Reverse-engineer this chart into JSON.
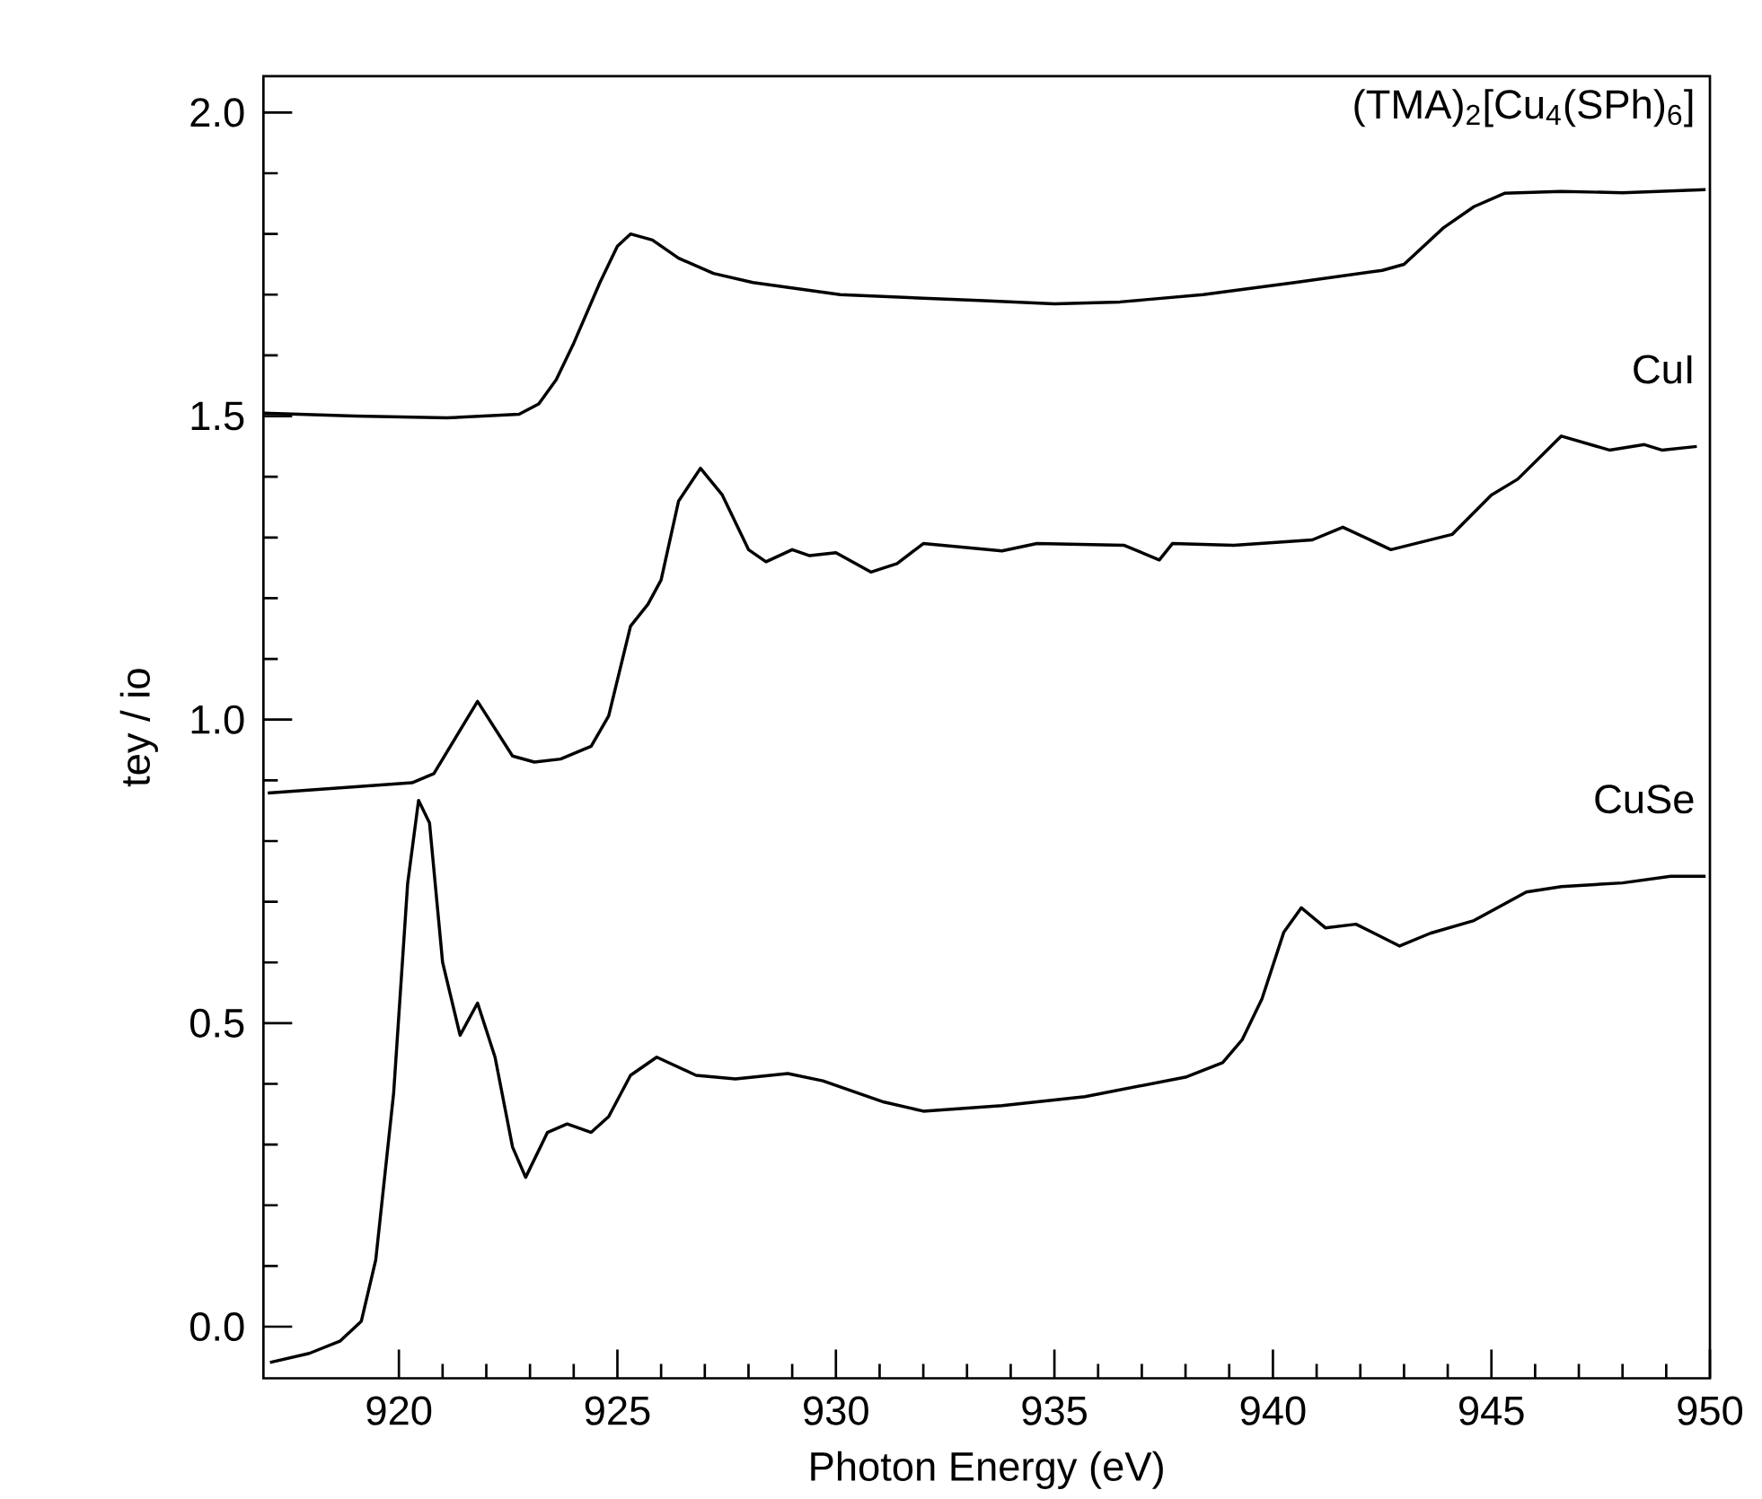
{
  "chart_data": {
    "type": "line",
    "xlabel": "Photon Energy (eV)",
    "ylabel": "tey / io",
    "xlim": [
      916.9,
      950
    ],
    "ylim": [
      -0.085,
      2.06
    ],
    "xticks": [
      920,
      925,
      930,
      935,
      940,
      945,
      950
    ],
    "yticks": [
      {
        "value": 0,
        "label": "0.0"
      },
      0.5,
      {
        "value": 1,
        "label": "1.0"
      },
      1.5,
      {
        "value": 2,
        "label": "2.0"
      }
    ],
    "marker": "none",
    "line_style": "solid",
    "series": [
      {
        "name": "(TMA)$_{2}$[Cu$_{4}$(SPh)$_{6}$]",
        "color": "#000000",
        "x": [
          916.9,
          919,
          921.1,
          922.75,
          923.2,
          923.6,
          924.0,
          924.6,
          925.0,
          925.3,
          925.8,
          926.4,
          927.2,
          928.1,
          930.1,
          933.4,
          935.0,
          936.5,
          938.4,
          940.5,
          942.5,
          943.0,
          943.9,
          944.6,
          945.3,
          946.6,
          948,
          949.9
        ],
        "values": [
          1.505,
          1.5,
          1.497,
          1.503,
          1.52,
          1.56,
          1.62,
          1.72,
          1.78,
          1.8,
          1.79,
          1.76,
          1.735,
          1.72,
          1.7,
          1.69,
          1.685,
          1.688,
          1.7,
          1.72,
          1.74,
          1.75,
          1.81,
          1.845,
          1.867,
          1.87,
          1.868,
          1.873
        ]
      },
      {
        "name": "CuI",
        "color": "#000000",
        "x": [
          917.0,
          920.3,
          920.8,
          921.8,
          922.6,
          923.1,
          923.7,
          924.4,
          924.8,
          925.3,
          925.7,
          926.0,
          926.4,
          926.9,
          927.4,
          928.0,
          928.4,
          929.0,
          929.4,
          930.0,
          930.8,
          931.4,
          932.0,
          933.8,
          934.6,
          936.6,
          937.4,
          937.7,
          939.1,
          940.9,
          941.6,
          942.7,
          944.1,
          945.0,
          945.6,
          946.6,
          947.7,
          948.5,
          948.9,
          949.7
        ],
        "values": [
          0.879,
          0.896,
          0.911,
          1.03,
          0.94,
          0.93,
          0.935,
          0.956,
          1.006,
          1.154,
          1.19,
          1.23,
          1.36,
          1.414,
          1.37,
          1.28,
          1.26,
          1.28,
          1.27,
          1.275,
          1.243,
          1.257,
          1.29,
          1.278,
          1.29,
          1.287,
          1.263,
          1.29,
          1.287,
          1.296,
          1.317,
          1.28,
          1.305,
          1.37,
          1.396,
          1.467,
          1.444,
          1.453,
          1.444,
          1.45
        ]
      },
      {
        "name": "CuSe",
        "color": "#000000",
        "x": [
          917.05,
          917.95,
          918.65,
          919.14,
          919.47,
          919.88,
          920.2,
          920.45,
          920.7,
          921.0,
          921.4,
          921.8,
          922.2,
          922.6,
          922.9,
          923.4,
          923.85,
          924.4,
          924.8,
          925.3,
          925.9,
          926.8,
          927.7,
          928.9,
          929.7,
          931.1,
          932.0,
          933.8,
          935.7,
          938.0,
          938.85,
          939.3,
          939.75,
          940.25,
          940.65,
          941.2,
          941.9,
          942.9,
          943.6,
          944.6,
          945.8,
          946.6,
          948.0,
          949.1,
          949.9
        ],
        "values": [
          -0.059,
          -0.044,
          -0.024,
          0.009,
          0.11,
          0.385,
          0.73,
          0.867,
          0.83,
          0.6,
          0.48,
          0.533,
          0.444,
          0.296,
          0.246,
          0.32,
          0.334,
          0.32,
          0.346,
          0.414,
          0.444,
          0.414,
          0.408,
          0.417,
          0.405,
          0.37,
          0.355,
          0.364,
          0.379,
          0.411,
          0.435,
          0.473,
          0.54,
          0.65,
          0.69,
          0.657,
          0.663,
          0.627,
          0.648,
          0.669,
          0.716,
          0.725,
          0.731,
          0.742,
          0.742
        ]
      }
    ]
  }
}
